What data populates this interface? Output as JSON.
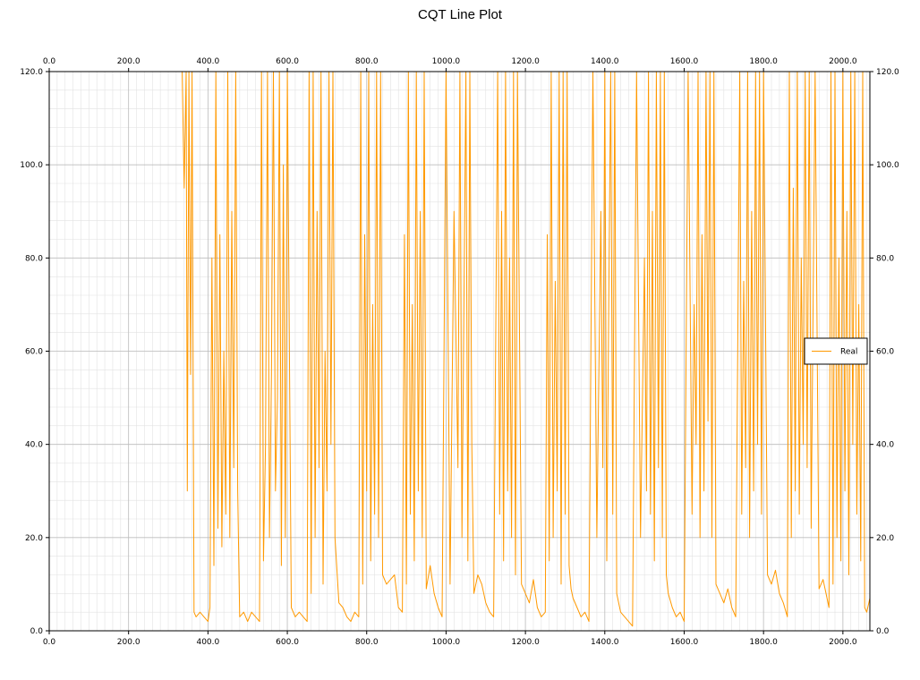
{
  "chart_data": {
    "type": "line",
    "title": "CQT Line Plot",
    "xlabel": "",
    "ylabel": "",
    "xlim": [
      0,
      2068
    ],
    "ylim": [
      0,
      120
    ],
    "x_ticks": [
      "0.0",
      "200.0",
      "400.0",
      "600.0",
      "800.0",
      "1000.0",
      "1200.0",
      "1400.0",
      "1600.0",
      "1800.0",
      "2000.0"
    ],
    "y_ticks": [
      "0.0",
      "20.0",
      "40.0",
      "60.0",
      "80.0",
      "100.0",
      "120.0"
    ],
    "grid": true,
    "legend_position": "right",
    "series": [
      {
        "name": "Real",
        "color": "#ff9900",
        "x": [
          0,
          100,
          200,
          300,
          335,
          340,
          345,
          348,
          352,
          356,
          360,
          365,
          370,
          380,
          390,
          400,
          405,
          410,
          415,
          420,
          425,
          430,
          435,
          440,
          445,
          450,
          455,
          460,
          465,
          470,
          475,
          480,
          490,
          500,
          510,
          520,
          530,
          535,
          540,
          545,
          550,
          555,
          560,
          565,
          570,
          575,
          580,
          585,
          590,
          595,
          600,
          610,
          620,
          630,
          640,
          650,
          655,
          660,
          665,
          670,
          675,
          680,
          685,
          690,
          695,
          700,
          705,
          710,
          715,
          720,
          730,
          740,
          750,
          760,
          770,
          780,
          785,
          790,
          795,
          800,
          805,
          810,
          815,
          820,
          825,
          830,
          835,
          840,
          850,
          860,
          870,
          880,
          890,
          895,
          900,
          905,
          910,
          915,
          920,
          925,
          930,
          935,
          940,
          945,
          950,
          960,
          970,
          980,
          990,
          1000,
          1010,
          1020,
          1030,
          1035,
          1040,
          1045,
          1050,
          1055,
          1060,
          1065,
          1070,
          1080,
          1090,
          1100,
          1110,
          1120,
          1130,
          1135,
          1140,
          1145,
          1150,
          1155,
          1160,
          1165,
          1170,
          1175,
          1180,
          1190,
          1200,
          1210,
          1220,
          1230,
          1240,
          1250,
          1255,
          1260,
          1265,
          1270,
          1275,
          1280,
          1285,
          1290,
          1295,
          1300,
          1305,
          1310,
          1315,
          1320,
          1330,
          1340,
          1350,
          1360,
          1370,
          1380,
          1390,
          1395,
          1400,
          1405,
          1410,
          1415,
          1420,
          1425,
          1430,
          1435,
          1440,
          1450,
          1460,
          1470,
          1480,
          1490,
          1500,
          1505,
          1510,
          1515,
          1520,
          1525,
          1530,
          1535,
          1540,
          1545,
          1550,
          1555,
          1560,
          1570,
          1580,
          1590,
          1600,
          1610,
          1620,
          1625,
          1630,
          1635,
          1640,
          1645,
          1650,
          1655,
          1660,
          1665,
          1670,
          1675,
          1680,
          1690,
          1700,
          1710,
          1720,
          1730,
          1740,
          1745,
          1750,
          1755,
          1760,
          1765,
          1770,
          1775,
          1780,
          1785,
          1790,
          1795,
          1800,
          1810,
          1820,
          1830,
          1840,
          1850,
          1860,
          1865,
          1870,
          1875,
          1880,
          1885,
          1890,
          1895,
          1900,
          1905,
          1910,
          1915,
          1920,
          1930,
          1940,
          1950,
          1960,
          1965,
          1970,
          1975,
          1980,
          1985,
          1990,
          1995,
          2000,
          2005,
          2010,
          2015,
          2020,
          2025,
          2030,
          2035,
          2040,
          2045,
          2050,
          2055,
          2060,
          2068
        ],
        "y": [
          120,
          120,
          120,
          120,
          120,
          95,
          120,
          30,
          120,
          55,
          120,
          4,
          3,
          4,
          3,
          2,
          5,
          80,
          14,
          120,
          22,
          85,
          18,
          60,
          25,
          120,
          20,
          90,
          35,
          120,
          30,
          3,
          4,
          2,
          4,
          3,
          2,
          120,
          15,
          40,
          120,
          20,
          55,
          120,
          30,
          50,
          120,
          14,
          100,
          20,
          120,
          5,
          3,
          4,
          3,
          2,
          120,
          8,
          120,
          20,
          90,
          35,
          120,
          10,
          60,
          30,
          120,
          40,
          120,
          20,
          6,
          5,
          3,
          2,
          4,
          3,
          120,
          10,
          85,
          30,
          120,
          15,
          70,
          25,
          120,
          20,
          120,
          12,
          10,
          11,
          12,
          5,
          4,
          85,
          10,
          120,
          25,
          70,
          15,
          120,
          30,
          90,
          20,
          120,
          9,
          14,
          8,
          5,
          3,
          120,
          10,
          90,
          35,
          120,
          20,
          70,
          120,
          15,
          120,
          40,
          8,
          12,
          10,
          6,
          4,
          3,
          120,
          25,
          90,
          15,
          120,
          30,
          80,
          20,
          120,
          12,
          120,
          10,
          8,
          6,
          11,
          5,
          3,
          4,
          85,
          15,
          120,
          20,
          75,
          30,
          120,
          10,
          120,
          25,
          120,
          14,
          9,
          7,
          5,
          3,
          4,
          2,
          120,
          20,
          90,
          35,
          120,
          15,
          70,
          120,
          25,
          120,
          8,
          6,
          4,
          3,
          2,
          1,
          120,
          20,
          80,
          30,
          120,
          25,
          90,
          15,
          120,
          35,
          120,
          20,
          120,
          12,
          8,
          5,
          3,
          4,
          2,
          120,
          25,
          70,
          40,
          120,
          20,
          85,
          30,
          120,
          45,
          120,
          20,
          120,
          10,
          8,
          6,
          9,
          5,
          3,
          120,
          25,
          75,
          35,
          120,
          20,
          90,
          30,
          120,
          40,
          120,
          25,
          120,
          12,
          10,
          13,
          8,
          6,
          3,
          120,
          20,
          95,
          30,
          120,
          25,
          80,
          40,
          120,
          35,
          120,
          22,
          120,
          9,
          11,
          7,
          5,
          120,
          10,
          120,
          20,
          80,
          15,
          120,
          30,
          90,
          12,
          120,
          40,
          120,
          25,
          70,
          15,
          120,
          5,
          4,
          7
        ]
      }
    ]
  }
}
